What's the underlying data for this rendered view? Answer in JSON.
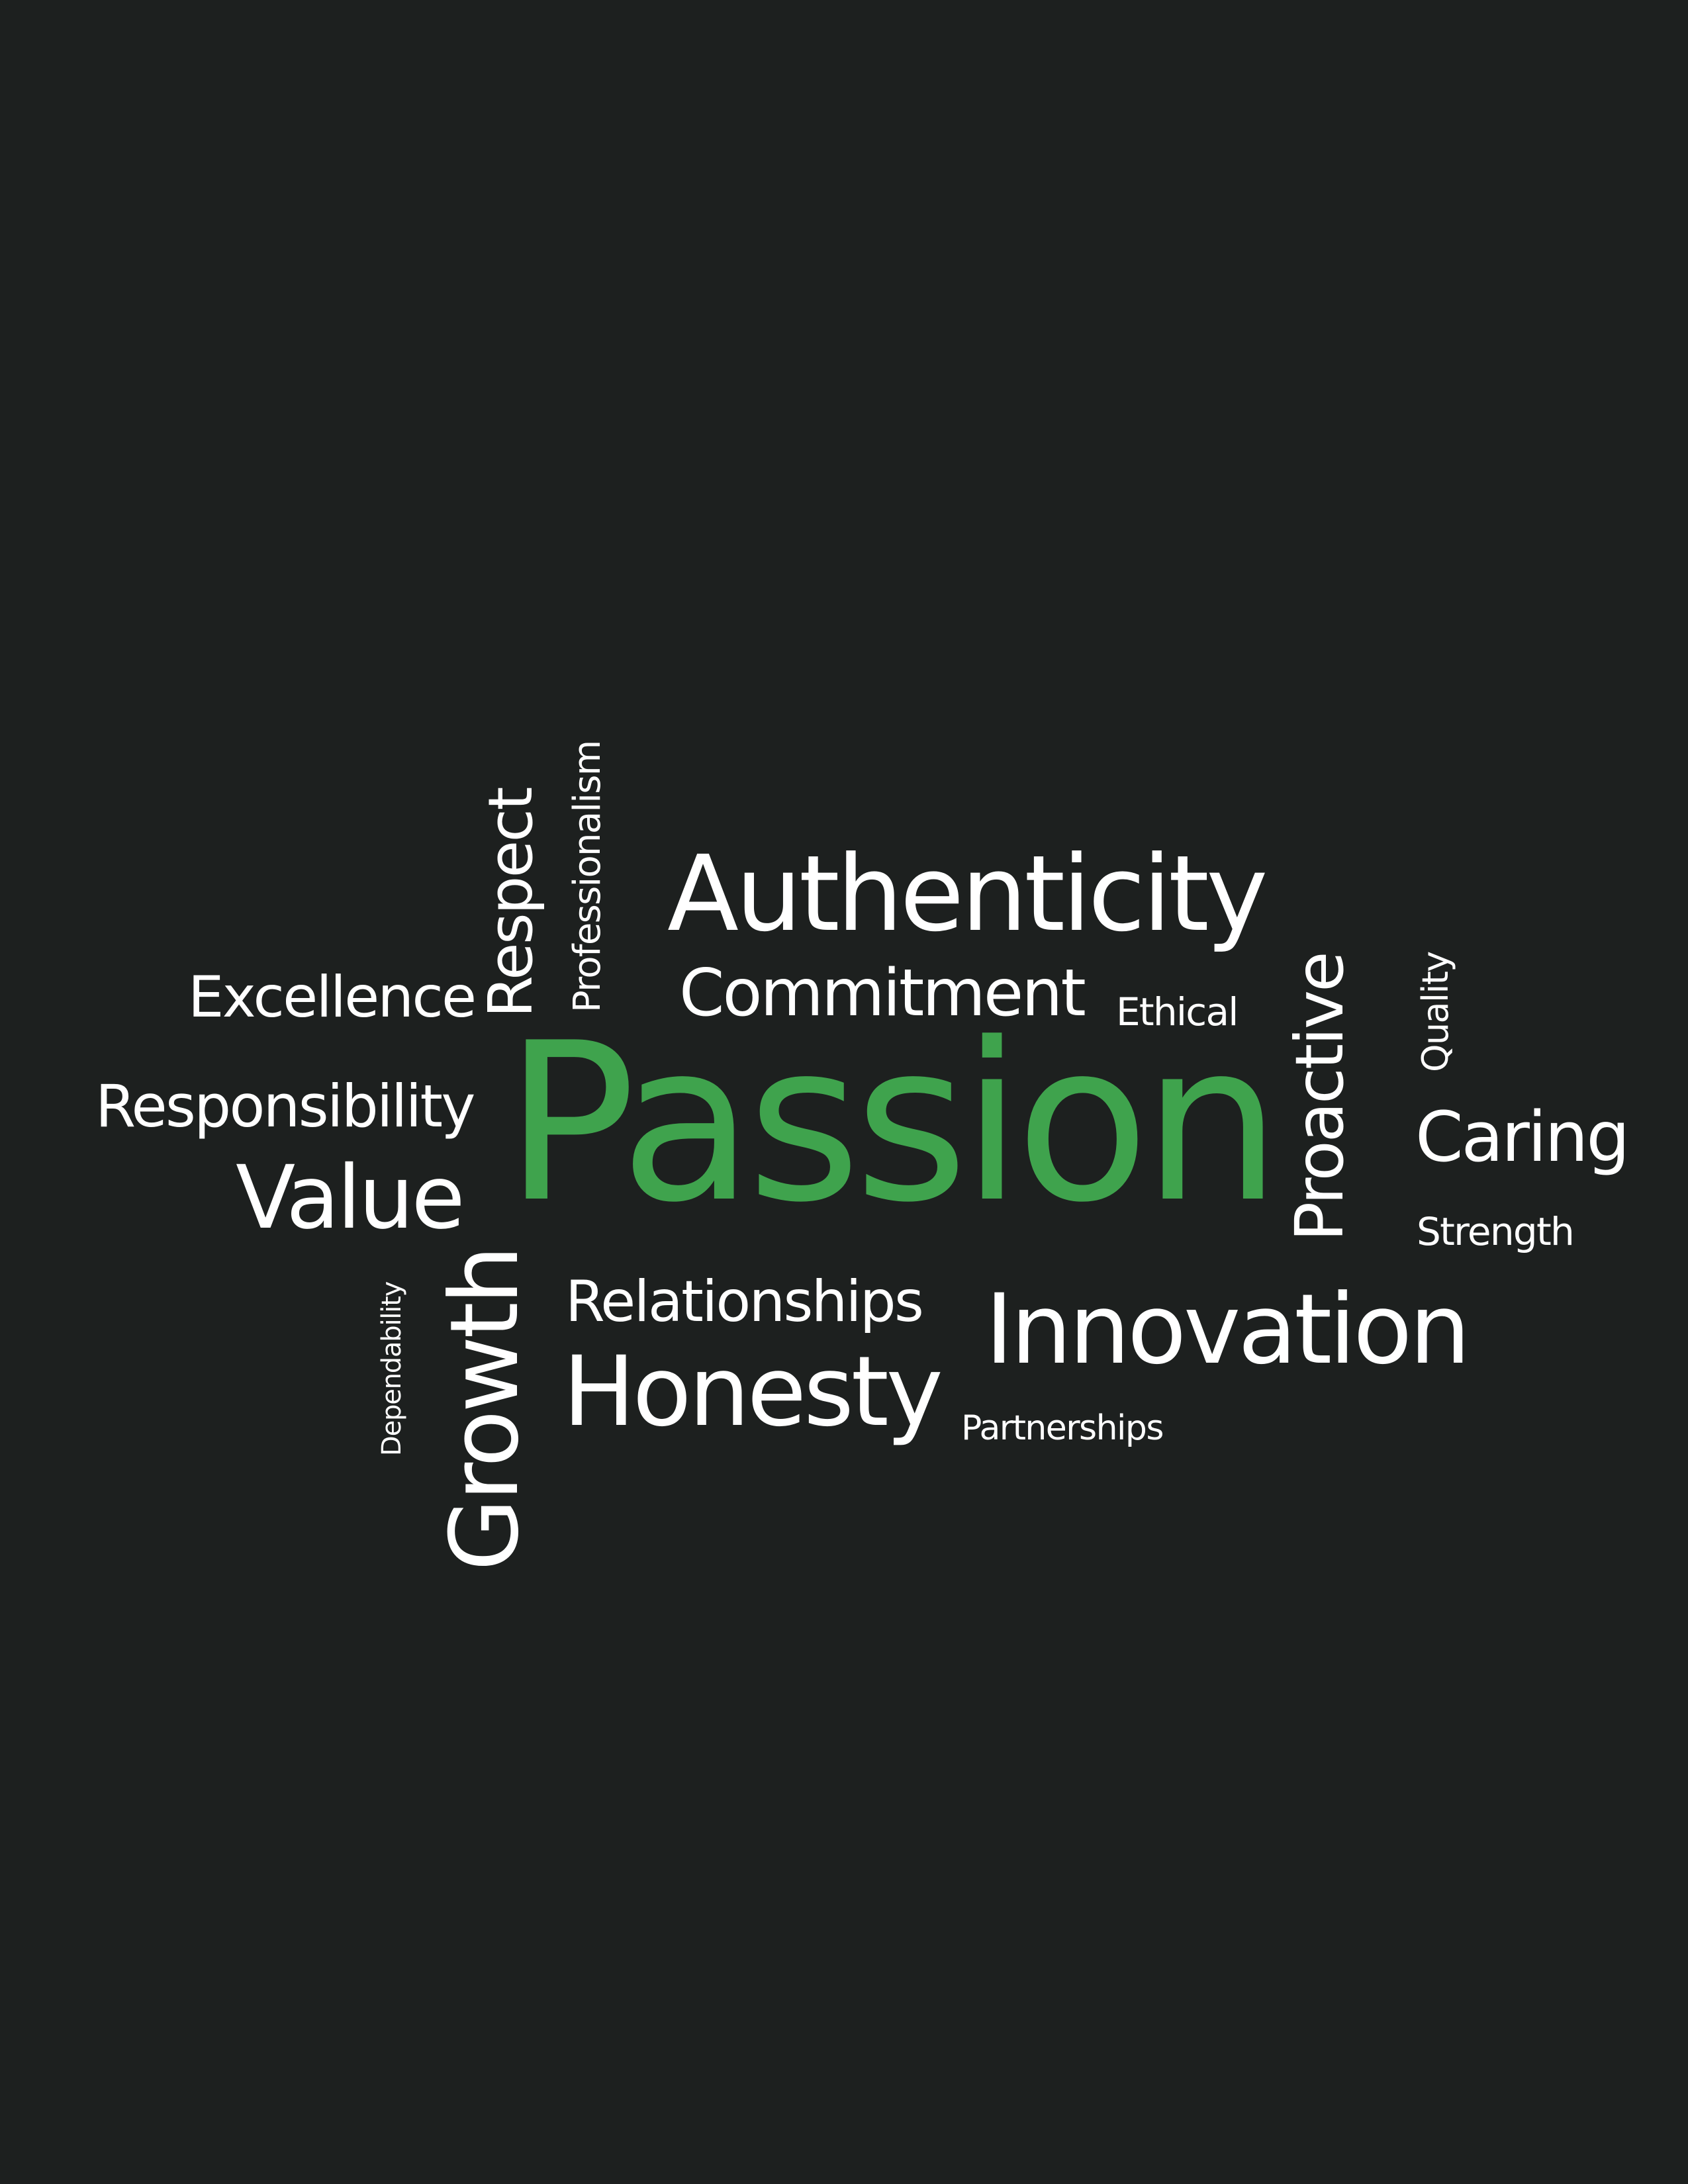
{
  "colors": {
    "background": "#1d201f",
    "text": "#ffffff",
    "accent": "#3fa34d"
  },
  "words": {
    "authenticity": "Authenticity",
    "commitment": "Commitment",
    "excellence": "Excellence",
    "respect": "Respect",
    "professionalism": "Professionalism",
    "ethical": "Ethical",
    "proactive": "Proactive",
    "quality": "Quality",
    "responsibility": "Responsibility",
    "passion": "Passion",
    "caring": "Caring",
    "value": "Value",
    "strength": "Strength",
    "relationships": "Relationships",
    "innovation": "Innovation",
    "dependability": "Dependability",
    "growth": "Growth",
    "honesty": "Honesty",
    "partnerships": "Partnerships"
  }
}
